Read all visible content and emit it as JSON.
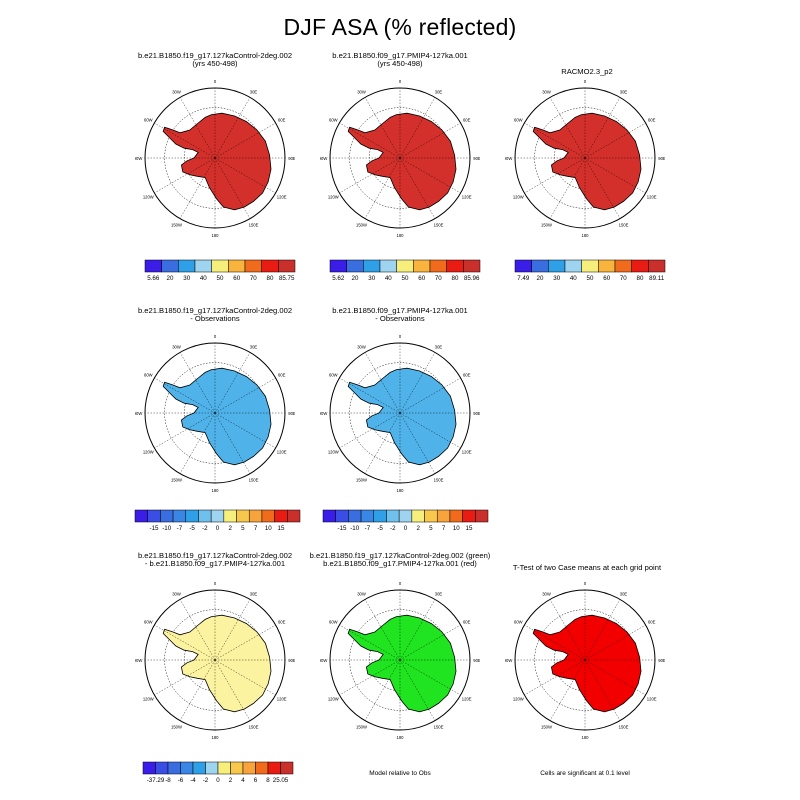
{
  "title": "DJF ASA (% reflected)",
  "colors": {
    "wet_red": "#d3302b",
    "ice_blue": "#4fb3ea",
    "light_blue": "#9fd4f0",
    "yellow": "#f9f392",
    "pale_yellow": "#fbf3a0",
    "green": "#1fe41f",
    "sig_red": "#f20000"
  },
  "longitude_labels": [
    "0",
    "30E",
    "60E",
    "90E",
    "120E",
    "150E",
    "180",
    "150W",
    "120W",
    "90W",
    "60W",
    "30W"
  ],
  "panels": [
    {
      "id": "ctrl",
      "title_line1": "b.e21.B1850.f19_g17.127kaControl-2deg.002",
      "title_line2": "(yrs 450-498)",
      "fill": "wet_red",
      "colorbar": {
        "colors": [
          "#3a1ee8",
          "#3a6ee0",
          "#2fa0e8",
          "#9fd4f0",
          "#f7ef7c",
          "#f8b43c",
          "#f06c1c",
          "#e81c12",
          "#c9302c"
        ],
        "labels": [
          "5.66",
          "20",
          "30",
          "40",
          "50",
          "60",
          "70",
          "80",
          "85.75"
        ]
      }
    },
    {
      "id": "pmip",
      "title_line1": "b.e21.B1850.f09_g17.PMIP4-127ka.001",
      "title_line2": "(yrs 450-498)",
      "fill": "wet_red",
      "colorbar": {
        "colors": [
          "#3a1ee8",
          "#3a6ee0",
          "#2fa0e8",
          "#9fd4f0",
          "#f7ef7c",
          "#f8b43c",
          "#f06c1c",
          "#e81c12",
          "#c9302c"
        ],
        "labels": [
          "5.62",
          "20",
          "30",
          "40",
          "50",
          "60",
          "70",
          "80",
          "85.96"
        ]
      }
    },
    {
      "id": "racmo",
      "title_line1": "RACMO2.3_p2",
      "title_line2": "",
      "fill": "wet_red",
      "colorbar": {
        "colors": [
          "#3a1ee8",
          "#3a6ee0",
          "#2fa0e8",
          "#9fd4f0",
          "#f7ef7c",
          "#f8b43c",
          "#f06c1c",
          "#e81c12",
          "#c9302c"
        ],
        "labels": [
          "7.49",
          "20",
          "30",
          "40",
          "50",
          "60",
          "70",
          "80",
          "89.11"
        ]
      }
    },
    {
      "id": "ctrl_obs",
      "title_line1": "b.e21.B1850.f19_g17.127kaControl-2deg.002",
      "title_line2": "- Observations",
      "fill": "ice_blue",
      "colorbar": {
        "colors": [
          "#3a1ee8",
          "#3a4ee6",
          "#3a6ee0",
          "#3a86e4",
          "#2fa0e8",
          "#6fc0ec",
          "#9fd4f0",
          "#f7ef7c",
          "#f8c84c",
          "#f8a43c",
          "#f06c1c",
          "#e81c12",
          "#c9302c"
        ],
        "labels": [
          "-15",
          "-10",
          "-7",
          "-5",
          "-2",
          "0",
          "2",
          "5",
          "7",
          "10",
          "15"
        ]
      }
    },
    {
      "id": "pmip_obs",
      "title_line1": "b.e21.B1850.f09_g17.PMIP4-127ka.001",
      "title_line2": "- Observations",
      "fill": "ice_blue",
      "colorbar": {
        "colors": [
          "#3a1ee8",
          "#3a4ee6",
          "#3a6ee0",
          "#3a86e4",
          "#2fa0e8",
          "#6fc0ec",
          "#9fd4f0",
          "#f7ef7c",
          "#f8c84c",
          "#f8a43c",
          "#f06c1c",
          "#e81c12",
          "#c9302c"
        ],
        "labels": [
          "-15",
          "-10",
          "-7",
          "-5",
          "-2",
          "0",
          "2",
          "5",
          "7",
          "10",
          "15"
        ]
      }
    },
    {
      "id": "diff",
      "title_line1": "b.e21.B1850.f19_g17.127kaControl-2deg.002",
      "title_line2": "- b.e21.B1850.f09_g17.PMIP4-127ka.001",
      "fill": "pale_yellow",
      "colorbar": {
        "colors": [
          "#3a1ee8",
          "#3a4ee6",
          "#3a6ee0",
          "#3a86e4",
          "#2fa0e8",
          "#9fd4f0",
          "#f7ef7c",
          "#f8c84c",
          "#f8a43c",
          "#f06c1c",
          "#e81c12",
          "#c9302c"
        ],
        "labels": [
          "-37.29",
          "-8",
          "-6",
          "-4",
          "-2",
          "0",
          "2",
          "4",
          "6",
          "8",
          "25.05"
        ]
      }
    },
    {
      "id": "model_rel",
      "title_line1": "b.e21.B1850.f19_g17.127kaControl-2deg.002 (green)",
      "title_line2": "b.e21.B1850.f09_g17.PMIP4-127ka.001 (red)",
      "fill": "green",
      "footnote": "Model relative to Obs"
    },
    {
      "id": "ttest",
      "title_line1": "T-Test of two Case means at each grid point",
      "title_line2": "",
      "fill": "sig_red",
      "footnote": "Cells are significant at 0.1 level"
    }
  ]
}
